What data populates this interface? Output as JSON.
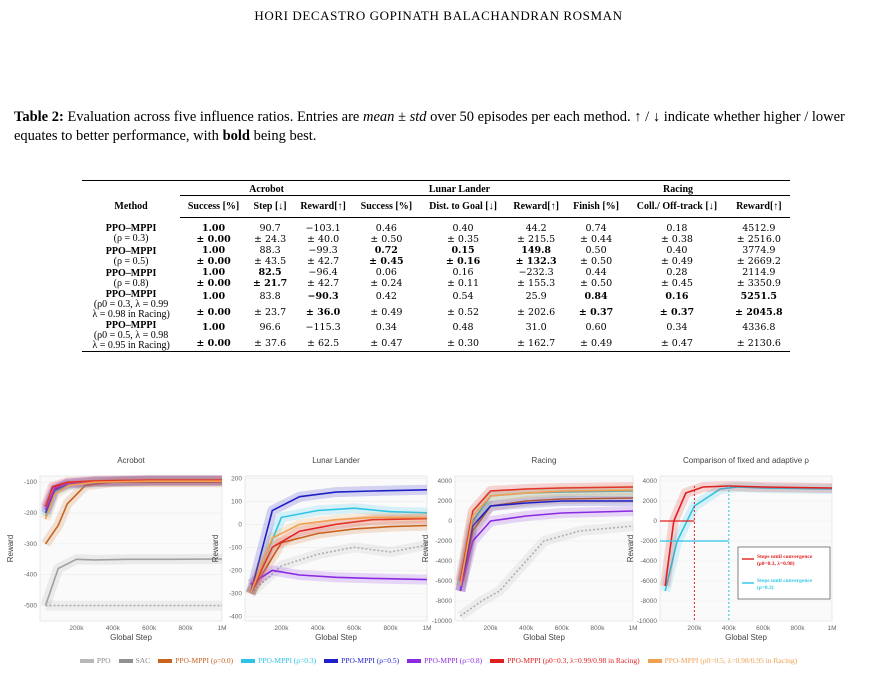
{
  "header": "HORI DECASTRO GOPINATH BALACHANDRAN ROSMAN",
  "caption": {
    "label": "Table 2:",
    "text_a": " Evaluation across five influence ratios. Entries are ",
    "text_em": "mean ± std",
    "text_b": " over 50 episodes per each method. ↑ / ↓ indicate whether higher / lower equates to better performance, with ",
    "text_bold": "bold",
    "text_c": " being best."
  },
  "table": {
    "groups": [
      "Acrobot",
      "Lunar Lander",
      "Racing"
    ],
    "method_header": "Method",
    "columns": [
      "Success [%]",
      "Step [↓]",
      "Reward[↑]",
      "Success [%]",
      "Dist. to Goal [↓]",
      "Reward[↑]",
      "Finish [%]",
      "Coll./ Off-track [↓]",
      "Reward[↑]"
    ],
    "rows": [
      {
        "name": "PPO–MPPI",
        "sub": [
          "(ρ = 0.3)"
        ],
        "mean": [
          "1.00",
          "90.7",
          "−103.1",
          "0.46",
          "0.40",
          "44.2",
          "0.74",
          "0.18",
          "4512.9"
        ],
        "std": [
          "± 0.00",
          "± 24.3",
          "± 40.0",
          "± 0.50",
          "± 0.35",
          "± 215.5",
          "± 0.44",
          "± 0.38",
          "± 2516.0"
        ],
        "bold": [
          0
        ]
      },
      {
        "name": "PPO–MPPI",
        "sub": [
          "(ρ = 0.5)"
        ],
        "mean": [
          "1.00",
          "88.3",
          "−99.3",
          "0.72",
          "0.15",
          "149.8",
          "0.50",
          "0.40",
          "3774.9"
        ],
        "std": [
          "± 0.00",
          "± 43.5",
          "± 42.7",
          "± 0.45",
          "± 0.16",
          "± 132.3",
          "± 0.50",
          "± 0.49",
          "± 2669.2"
        ],
        "bold": [
          0,
          3,
          4,
          5
        ]
      },
      {
        "name": "PPO–MPPI",
        "sub": [
          "(ρ = 0.8)"
        ],
        "mean": [
          "1.00",
          "82.5",
          "−96.4",
          "0.06",
          "0.16",
          "−232.3",
          "0.44",
          "0.28",
          "2114.9"
        ],
        "std": [
          "± 0.00",
          "± 21.7",
          "± 42.7",
          "± 0.24",
          "± 0.11",
          "± 155.3",
          "± 0.50",
          "± 0.45",
          "± 3350.9"
        ],
        "bold": [
          0,
          1
        ]
      },
      {
        "name": "PPO–MPPI",
        "sub": [
          "(ρ0 = 0.3, λ = 0.99",
          "λ = 0.98 in Racing)"
        ],
        "mean": [
          "1.00",
          "83.8",
          "−90.3",
          "0.42",
          "0.54",
          "25.9",
          "0.84",
          "0.16",
          "5251.5"
        ],
        "std": [
          "± 0.00",
          "± 23.7",
          "± 36.0",
          "± 0.49",
          "± 0.52",
          "± 202.6",
          "± 0.37",
          "± 0.37",
          "± 2045.8"
        ],
        "bold": [
          0,
          2,
          6,
          7,
          8
        ]
      },
      {
        "name": "PPO–MPPI",
        "sub": [
          "(ρ0 = 0.5, λ = 0.98",
          "λ = 0.95 in Racing)"
        ],
        "mean": [
          "1.00",
          "96.6",
          "−115.3",
          "0.34",
          "0.48",
          "31.0",
          "0.60",
          "0.34",
          "4336.8"
        ],
        "std": [
          "± 0.00",
          "± 37.6",
          "± 62.5",
          "± 0.47",
          "± 0.30",
          "± 162.7",
          "± 0.49",
          "± 0.47",
          "± 2130.6"
        ],
        "bold": [
          0
        ]
      }
    ]
  },
  "colors": {
    "ppo": "#b0b0b0",
    "sac": "#a0a0a0",
    "mppi00": "#c8641e",
    "mppi03": "#2ec4e6",
    "mppi05": "#1f1fc8",
    "mppi08": "#8a2be2",
    "adapt03": "#e02020",
    "adapt05": "#f0a050"
  },
  "chart_data": [
    {
      "type": "line",
      "title": "Acrobot",
      "xlabel": "Global Step",
      "ylabel": "Reward",
      "xlim": [
        0,
        1000000
      ],
      "ylim": [
        -550,
        -80
      ],
      "xticks": [
        "200k",
        "400k",
        "600k",
        "800k",
        "1M"
      ],
      "yticks": [
        "-100",
        "-200",
        "-300",
        "-400",
        "-500"
      ],
      "series": [
        {
          "name": "SAC",
          "x": [
            0.03,
            0.1,
            0.2,
            0.3,
            0.5,
            0.7,
            1.0
          ],
          "y": [
            -500,
            -380,
            -350,
            -352,
            -350,
            -350,
            -349
          ]
        },
        {
          "name": "PPO",
          "x": [
            0.03,
            1.0
          ],
          "y": [
            -500,
            -500
          ]
        },
        {
          "name": "PPO-MPPI (ρ=0.0)",
          "x": [
            0.03,
            0.1,
            0.15,
            0.25,
            0.4,
            0.6,
            1.0
          ],
          "y": [
            -300,
            -240,
            -170,
            -110,
            -100,
            -100,
            -100
          ]
        },
        {
          "name": "PPO-MPPI (ρ=0.3)",
          "x": [
            0.03,
            0.08,
            0.15,
            0.3,
            0.6,
            1.0
          ],
          "y": [
            -210,
            -130,
            -110,
            -100,
            -95,
            -95
          ]
        },
        {
          "name": "PPO-MPPI (ρ=0.5)",
          "x": [
            0.03,
            0.08,
            0.15,
            0.3,
            0.6,
            1.0
          ],
          "y": [
            -200,
            -125,
            -105,
            -98,
            -95,
            -95
          ]
        },
        {
          "name": "PPO-MPPI (ρ=0.8)",
          "x": [
            0.03,
            0.08,
            0.15,
            0.3,
            0.6,
            1.0
          ],
          "y": [
            -190,
            -120,
            -105,
            -98,
            -96,
            -96
          ]
        },
        {
          "name": "PPO-MPPI (ρ0=0.3)",
          "x": [
            0.03,
            0.07,
            0.15,
            0.3,
            0.6,
            1.0
          ],
          "y": [
            -180,
            -115,
            -100,
            -96,
            -93,
            -93
          ]
        },
        {
          "name": "PPO-MPPI (ρ0=0.5)",
          "x": [
            0.03,
            0.08,
            0.16,
            0.3,
            0.6,
            1.0
          ],
          "y": [
            -220,
            -140,
            -110,
            -100,
            -97,
            -97
          ]
        }
      ]
    },
    {
      "type": "line",
      "title": "Lunar Lander",
      "xlabel": "Global Step",
      "ylabel": "Reward",
      "xlim": [
        0,
        1000000
      ],
      "ylim": [
        -420,
        210
      ],
      "xticks": [
        "200k",
        "400k",
        "600k",
        "800k",
        "1M"
      ],
      "yticks": [
        "200",
        "100",
        "0",
        "-100",
        "-200",
        "-300",
        "-400"
      ],
      "series": [
        {
          "name": "PPO",
          "x": [
            0.03,
            0.2,
            0.4,
            0.6,
            0.8,
            1.0
          ],
          "y": [
            -300,
            -180,
            -130,
            -100,
            -120,
            -90
          ]
        },
        {
          "name": "PPO-MPPI (ρ=0.0)",
          "x": [
            0.03,
            0.2,
            0.4,
            0.6,
            0.8,
            1.0
          ],
          "y": [
            -300,
            -80,
            -40,
            -20,
            -10,
            -5
          ]
        },
        {
          "name": "PPO-MPPI (ρ=0.3)",
          "x": [
            0.03,
            0.2,
            0.4,
            0.6,
            0.8,
            1.0
          ],
          "y": [
            -300,
            30,
            60,
            70,
            55,
            50
          ]
        },
        {
          "name": "PPO-MPPI (ρ=0.5)",
          "x": [
            0.03,
            0.15,
            0.3,
            0.5,
            0.7,
            1.0
          ],
          "y": [
            -300,
            60,
            120,
            140,
            145,
            150
          ]
        },
        {
          "name": "PPO-MPPI (ρ=0.8)",
          "x": [
            0.03,
            0.15,
            0.3,
            0.5,
            0.7,
            1.0
          ],
          "y": [
            -260,
            -200,
            -220,
            -230,
            -235,
            -240
          ]
        },
        {
          "name": "PPO-MPPI (ρ0=0.3)",
          "x": [
            0.03,
            0.15,
            0.3,
            0.5,
            0.7,
            1.0
          ],
          "y": [
            -300,
            -100,
            -30,
            0,
            20,
            25
          ]
        },
        {
          "name": "PPO-MPPI (ρ0=0.5)",
          "x": [
            0.03,
            0.15,
            0.3,
            0.5,
            0.7,
            1.0
          ],
          "y": [
            -300,
            -60,
            0,
            20,
            30,
            30
          ]
        }
      ]
    },
    {
      "type": "line",
      "title": "Racing",
      "xlabel": "Global Step",
      "ylabel": "Reward",
      "xlim": [
        0,
        1000000
      ],
      "ylim": [
        -10000,
        4500
      ],
      "xticks": [
        "200k",
        "400k",
        "600k",
        "800k",
        "1M"
      ],
      "yticks": [
        "4000",
        "2000",
        "0",
        "-2000",
        "-4000",
        "-6000",
        "-8000",
        "-10000"
      ],
      "series": [
        {
          "name": "PPO",
          "x": [
            0.03,
            0.15,
            0.25,
            0.35,
            0.5,
            0.7,
            1.0
          ],
          "y": [
            -9500,
            -8000,
            -7000,
            -5000,
            -2000,
            -1000,
            -500
          ]
        },
        {
          "name": "PPO-MPPI (ρ=0.0)",
          "x": [
            0.03,
            0.1,
            0.2,
            0.4,
            0.6,
            1.0
          ],
          "y": [
            -7000,
            -1000,
            1500,
            2000,
            2200,
            2300
          ]
        },
        {
          "name": "PPO-MPPI (ρ=0.3)",
          "x": [
            0.03,
            0.1,
            0.2,
            0.4,
            0.6,
            1.0
          ],
          "y": [
            -6500,
            0,
            2500,
            2800,
            2900,
            3000
          ]
        },
        {
          "name": "PPO-MPPI (ρ=0.5)",
          "x": [
            0.03,
            0.1,
            0.2,
            0.4,
            0.6,
            1.0
          ],
          "y": [
            -7000,
            -500,
            1500,
            1800,
            2000,
            2000
          ]
        },
        {
          "name": "PPO-MPPI (ρ=0.8)",
          "x": [
            0.03,
            0.1,
            0.2,
            0.4,
            0.6,
            1.0
          ],
          "y": [
            -7000,
            -2000,
            0,
            500,
            800,
            1000
          ]
        },
        {
          "name": "PPO-MPPI (ρ0=0.3)",
          "x": [
            0.03,
            0.1,
            0.2,
            0.4,
            0.6,
            1.0
          ],
          "y": [
            -6000,
            1000,
            3000,
            3200,
            3300,
            3400
          ]
        },
        {
          "name": "PPO-MPPI (ρ0=0.5)",
          "x": [
            0.03,
            0.1,
            0.2,
            0.4,
            0.6,
            1.0
          ],
          "y": [
            -6500,
            500,
            2500,
            2800,
            3000,
            3100
          ]
        }
      ]
    },
    {
      "type": "line",
      "title": "Comparison of fixed and adaptive ρ",
      "xlabel": "Global Step",
      "ylabel": "Reward",
      "xlim": [
        0,
        1000000
      ],
      "ylim": [
        -10000,
        4500
      ],
      "xticks": [
        "200k",
        "400k",
        "600k",
        "800k",
        "1M"
      ],
      "yticks": [
        "4000",
        "2000",
        "0",
        "-2000",
        "-4000",
        "-6000",
        "-8000",
        "-10000"
      ],
      "annotations": {
        "legend_title_a": "Steps until convergence",
        "legend_sub_a": "(ρ0=0.3, λ=0.98)",
        "legend_title_b": "Steps until convergence",
        "legend_sub_b": "(ρ=0.3)"
      },
      "series": [
        {
          "name": "PPO-MPPI (ρ=0.3)",
          "x": [
            0.03,
            0.1,
            0.2,
            0.35,
            0.45,
            0.6,
            1.0
          ],
          "y": [
            -7000,
            -2000,
            1500,
            3200,
            3400,
            3300,
            3200
          ]
        },
        {
          "name": "PPO-MPPI (ρ0=0.3)",
          "x": [
            0.03,
            0.08,
            0.15,
            0.25,
            0.4,
            0.6,
            1.0
          ],
          "y": [
            -6500,
            0,
            2800,
            3400,
            3500,
            3400,
            3300
          ]
        }
      ]
    }
  ],
  "legend": [
    {
      "label": "PPO",
      "color": "#b8b8b8"
    },
    {
      "label": "SAC",
      "color": "#909090"
    },
    {
      "label": "PPO-MPPI (ρ=0.0)",
      "color": "#c8641e"
    },
    {
      "label": "PPO-MPPI (ρ=0.3)",
      "color": "#2ec4e6"
    },
    {
      "label": "PPO-MPPI (ρ=0.5)",
      "color": "#1f1fc8"
    },
    {
      "label": "PPO-MPPI (ρ=0.8)",
      "color": "#8a2be2"
    },
    {
      "label": "PPO-MPPI (ρ0=0.3, λ=0.99/0.98 in Racing)",
      "color": "#e02020"
    },
    {
      "label": "PPO-MPPI (ρ0=0.5, λ=0.98/0.95 in Racing)",
      "color": "#f0a050"
    }
  ]
}
